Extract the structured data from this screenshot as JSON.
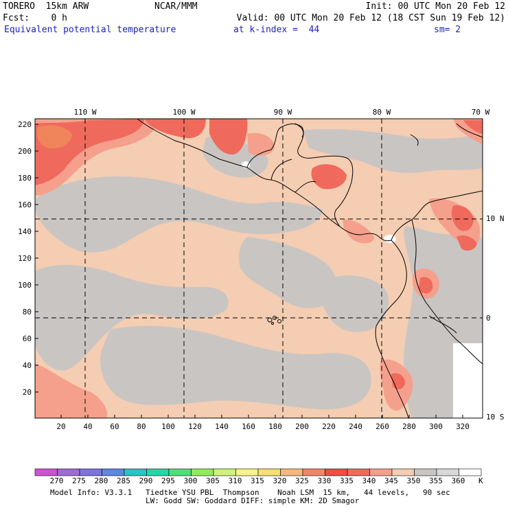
{
  "header": {
    "model": "TORERO  15km ARW",
    "org": "NCAR/MMM",
    "init": "Init: 00 UTC Mon 20 Feb 12",
    "fcst": "Fcst:    0 h",
    "valid": "Valid: 00 UTC Mon 20 Feb 12 (18 CST Sun 19 Feb 12)",
    "field": "Equivalent potential temperature",
    "level": "at k-index =  44",
    "smooth": "sm= 2"
  },
  "map": {
    "longitude_labels": [
      "110 W",
      "100 W",
      "90 W",
      "80 W",
      "70 W"
    ],
    "latitude_labels": [
      "10 N",
      "0",
      "10 S"
    ],
    "y_ticks": [
      "220",
      "200",
      "180",
      "160",
      "140",
      "120",
      "100",
      "80",
      "60",
      "40",
      "20"
    ],
    "x_ticks": [
      "20",
      "40",
      "60",
      "80",
      "100",
      "120",
      "140",
      "160",
      "180",
      "200",
      "220",
      "240",
      "260",
      "280",
      "300",
      "320"
    ],
    "background_color": "#f4cdb2",
    "colors": {
      "gray": "#c9c5c3",
      "light_gray": "#d6d3d1",
      "salmon": "#f5a08c",
      "red": "#ef6a5c",
      "dark_red": "#e84c45",
      "orange": "#f0855c",
      "white": "#ffffff"
    }
  },
  "colorbar": {
    "labels": [
      "270",
      "275",
      "280",
      "285",
      "290",
      "295",
      "300",
      "305",
      "310",
      "315",
      "320",
      "325",
      "330",
      "335",
      "340",
      "345",
      "350",
      "355",
      "360"
    ],
    "unit": "K",
    "colors": [
      "#cf52cf",
      "#9e6ad4",
      "#7d72e0",
      "#5f86e0",
      "#29c4c4",
      "#27d6a6",
      "#4fe07a",
      "#95ea5c",
      "#cff27a",
      "#f4f48a",
      "#f6df72",
      "#f5b87e",
      "#f1856a",
      "#ee4e44",
      "#f06a5c",
      "#f5a08c",
      "#f4cdb2",
      "#c9c5c3",
      "#d9d9d9",
      "#ffffff"
    ]
  },
  "footer": {
    "line1": "Model Info: V3.3.1   Tiedtke YSU PBL  Thompson    Noah LSM  15 km,   44 levels,   90 sec",
    "line2": "LW: Godd SW: Goddard DIFF: simple KM: 2D Smagor"
  }
}
